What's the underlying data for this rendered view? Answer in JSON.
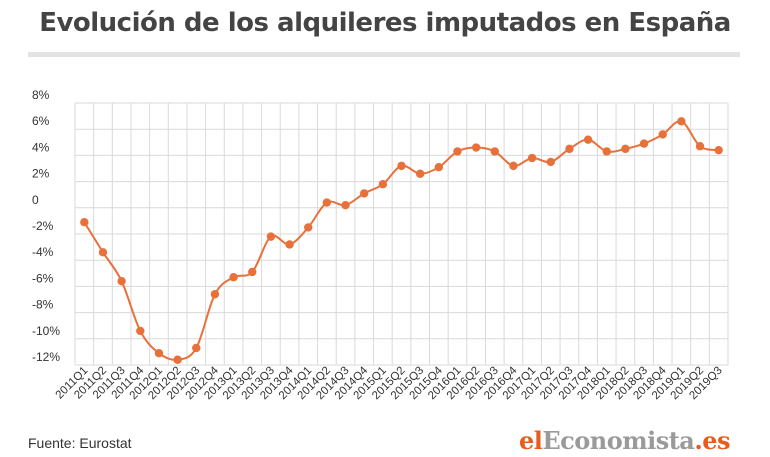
{
  "title": "Evolución de los alquileres imputados en España",
  "source": "Fuente: Eurostat",
  "logo": {
    "part1": "el",
    "part2": "Economista",
    "part3": ".es"
  },
  "colors": {
    "line": "#e8703a",
    "grid": "#d9d9d9",
    "logo_accent": "#e85d1e",
    "logo_gray": "#9a9a9a"
  },
  "chart_data": {
    "type": "line",
    "title": "Evolución de los alquileres imputados en España",
    "xlabel": "",
    "ylabel": "",
    "ylim": [
      -12,
      8
    ],
    "y_ticks": [
      8,
      6,
      4,
      2,
      0,
      -2,
      -4,
      -6,
      -8,
      -10,
      -12
    ],
    "y_tick_labels": [
      "8%",
      "6%",
      "4%",
      "2%",
      "0",
      "-2%",
      "-4%",
      "-6%",
      "-8%",
      "-10%",
      "-12%"
    ],
    "grid": true,
    "categories": [
      "2011Q1",
      "2011Q2",
      "2011Q3",
      "2011Q4",
      "2012Q1",
      "2012Q2",
      "2012Q3",
      "2012Q4",
      "2013Q1",
      "2013Q2",
      "2013Q3",
      "2013Q4",
      "2014Q1",
      "2014Q2",
      "2014Q3",
      "2014Q4",
      "2015Q1",
      "2015Q2",
      "2015Q3",
      "2015Q4",
      "2016Q1",
      "2016Q2",
      "2016Q3",
      "2016Q4",
      "2017Q1",
      "2017Q2",
      "2017Q3",
      "2017Q4",
      "2018Q1",
      "2018Q2",
      "2018Q3",
      "2018Q4",
      "2019Q1",
      "2019Q2",
      "2019Q3"
    ],
    "values": [
      -1.1,
      -3.4,
      -5.6,
      -9.4,
      -11.1,
      -11.6,
      -10.7,
      -6.6,
      -5.3,
      -4.9,
      -2.2,
      -2.8,
      -1.5,
      0.4,
      0.2,
      1.1,
      1.8,
      3.2,
      2.6,
      3.1,
      4.3,
      4.6,
      4.3,
      3.2,
      3.8,
      3.5,
      4.5,
      5.2,
      4.3,
      4.5,
      4.9,
      5.6,
      6.6,
      4.7,
      4.4
    ]
  }
}
